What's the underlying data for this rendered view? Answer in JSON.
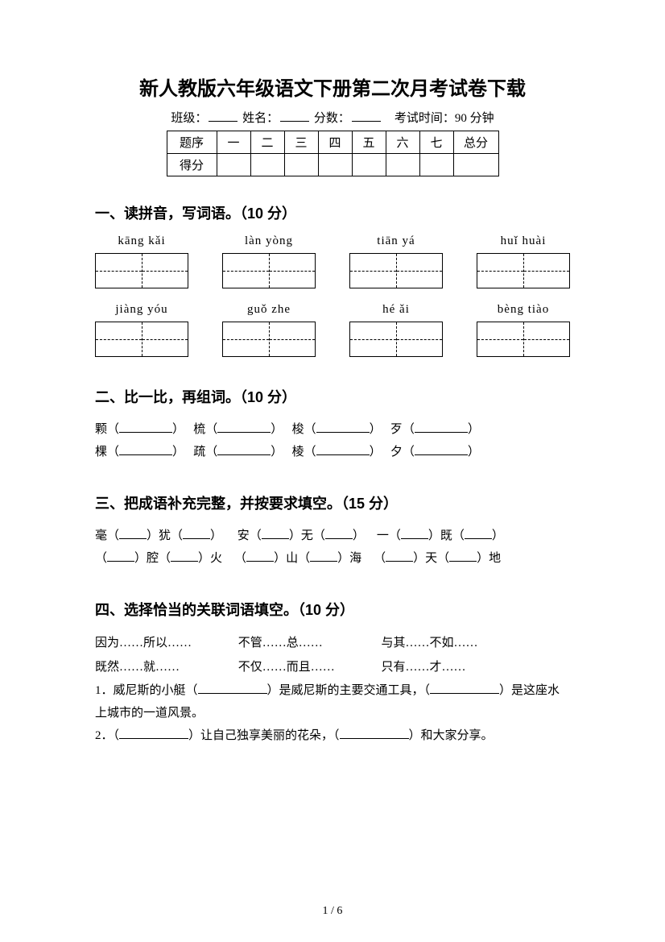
{
  "title": "新人教版六年级语文下册第二次月考试卷下载",
  "info": {
    "class_label": "班级：",
    "name_label": "姓名：",
    "score_label": "分数：",
    "time_label": "考试时间：90 分钟"
  },
  "score_table": {
    "header": [
      "题序",
      "一",
      "二",
      "三",
      "四",
      "五",
      "六",
      "七",
      "总分"
    ],
    "row_label": "得分"
  },
  "s1": {
    "heading": "一、读拼音，写词语。（10 分）",
    "row1": [
      "kāng  kǎi",
      "làn  yòng",
      "tiān  yá",
      "huǐ  huài"
    ],
    "row2": [
      "jiàng  yóu",
      "guǒ  zhe",
      "hé  ǎi",
      "bèng  tiào"
    ]
  },
  "s2": {
    "heading": "二、比一比，再组词。（10 分）",
    "pairs": [
      [
        "颗（",
        "）",
        "梳（",
        "）",
        "梭（",
        "）",
        "歹（",
        "）"
      ],
      [
        "棵（",
        "）",
        "疏（",
        "）",
        "棱（",
        "）",
        "夕（",
        "）"
      ]
    ]
  },
  "s3": {
    "heading": "三、把成语补充完整，并按要求填空。（15 分）",
    "lines": [
      [
        "毫（",
        "）犹（",
        "）",
        "安（",
        "）无（",
        "）",
        "一（",
        "）既（",
        "）"
      ],
      [
        "（",
        "）腔（",
        "）火",
        "（",
        "）山（",
        "）海",
        "（",
        "）天（",
        "）地"
      ]
    ]
  },
  "s4": {
    "heading": "四、选择恰当的关联词语填空。（10 分）",
    "options": [
      "因为……所以……",
      "不管……总……",
      "与其……不如……",
      "既然……就……",
      "不仅……而且……",
      "只有……才……"
    ],
    "q1a": "1．威尼斯的小艇（",
    "q1b": "）是威尼斯的主要交通工具，（",
    "q1c": "）是这座水上城市的一道风景。",
    "q2a": "2．（",
    "q2b": "）让自己独享美丽的花朵，（",
    "q2c": "）和大家分享。"
  },
  "pager": "1  /  6"
}
